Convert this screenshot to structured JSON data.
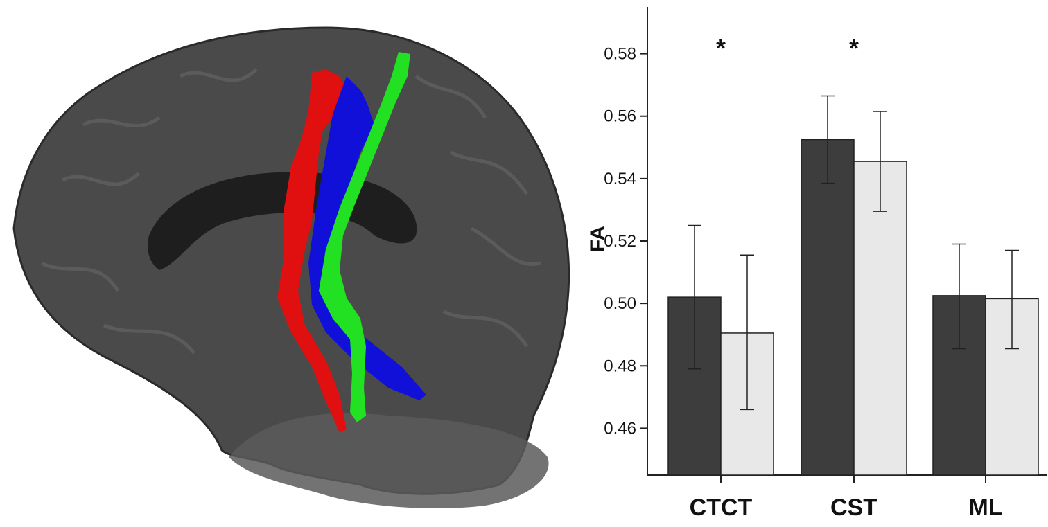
{
  "colors": {
    "group1_bar": "#3d3d3d",
    "group2_bar": "#e8e8e8",
    "tract_red": "#e01010",
    "tract_blue": "#1010d8",
    "tract_green": "#22e022",
    "brain_gray": "#4a4a4a"
  },
  "brain_image": {
    "tracts": [
      "red-tract",
      "blue-tract",
      "green-tract"
    ]
  },
  "chart_data": {
    "type": "bar",
    "categories": [
      "CTCT",
      "CST",
      "ML"
    ],
    "ylabel": "FA",
    "xlabel": "",
    "title": "",
    "ylim": [
      0.445,
      0.595
    ],
    "yticks": [
      0.46,
      0.48,
      0.5,
      0.52,
      0.54,
      0.56,
      0.58
    ],
    "ytick_labels": [
      "0.46",
      "0.48",
      "0.50",
      "0.52",
      "0.54",
      "0.56",
      "0.58"
    ],
    "grid": false,
    "legend": "none",
    "series": [
      {
        "color": "#3d3d3d",
        "values": [
          0.502,
          0.5525,
          0.5025
        ],
        "err_low": [
          0.479,
          0.5385,
          0.4855
        ],
        "err_high": [
          0.525,
          0.5665,
          0.519
        ]
      },
      {
        "color": "#e8e8e8",
        "values": [
          0.4905,
          0.5455,
          0.5015
        ],
        "err_low": [
          0.466,
          0.5295,
          0.4855
        ],
        "err_high": [
          0.5155,
          0.5615,
          0.517
        ]
      }
    ],
    "annotations": [
      {
        "category": "CTCT",
        "text": "*"
      },
      {
        "category": "CST",
        "text": "*"
      }
    ]
  }
}
